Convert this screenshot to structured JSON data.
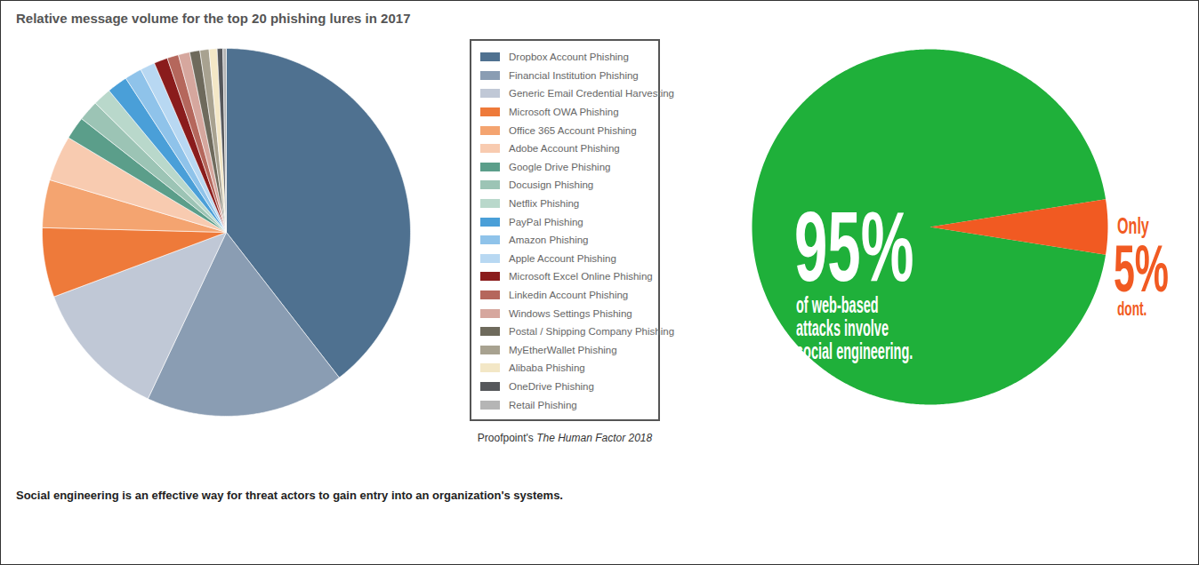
{
  "chart_data": [
    {
      "type": "pie",
      "title": "Relative message volume for the top 20 phishing lures in 2017",
      "categories": [
        "Dropbox Account Phishing",
        "Financial Institution Phishing",
        "Generic Email Credential Harvesting",
        "Microsoft OWA Phishing",
        "Office 365 Account Phishing",
        "Adobe Account Phishing",
        "Google Drive Phishing",
        "Docusign Phishing",
        "Netflix Phishing",
        "PayPal Phishing",
        "Amazon Phishing",
        "Apple Account Phishing",
        "Microsoft Excel Online Phishing",
        "Linkedin Account Phishing",
        "Windows Settings Phishing",
        "Postal / Shipping Company Phishing",
        "MyEtherWallet Phishing",
        "Alibaba Phishing",
        "OneDrive Phishing",
        "Retail Phishing"
      ],
      "values": [
        39.5,
        17.5,
        12.3,
        6.1,
        4.2,
        4.0,
        2.0,
        1.8,
        1.6,
        1.8,
        1.5,
        1.3,
        1.2,
        1.0,
        1.0,
        0.9,
        0.8,
        0.7,
        0.5,
        0.3
      ],
      "colors": [
        "#4f7190",
        "#8a9db3",
        "#c0c8d6",
        "#ee7a3a",
        "#f4a470",
        "#f8cbb0",
        "#5b9e8a",
        "#9cc4b5",
        "#b9d8cb",
        "#4a9fd8",
        "#8fc3ea",
        "#b8d8f2",
        "#8a1c1c",
        "#b5675c",
        "#d6a79e",
        "#6e6a5c",
        "#a8a290",
        "#f3e7c6",
        "#55575b",
        "#b5b5b5"
      ],
      "legend": "right",
      "data_labels": false,
      "source": {
        "publisher": "Proofpoint's",
        "title": "The Human Factor 2018"
      }
    },
    {
      "type": "pie",
      "values": [
        95,
        5
      ],
      "value_labels": [
        "95%",
        "5%"
      ],
      "colors": [
        "#1fb03a",
        "#f15a22"
      ],
      "data_labels": true,
      "annotations": {
        "main": [
          "of web-based",
          "attacks involve",
          "social engineering."
        ],
        "other_before": "Only",
        "other_after": "dont."
      }
    }
  ],
  "caption": "Social engineering is an effective way for threat actors to gain entry into an organization's systems."
}
